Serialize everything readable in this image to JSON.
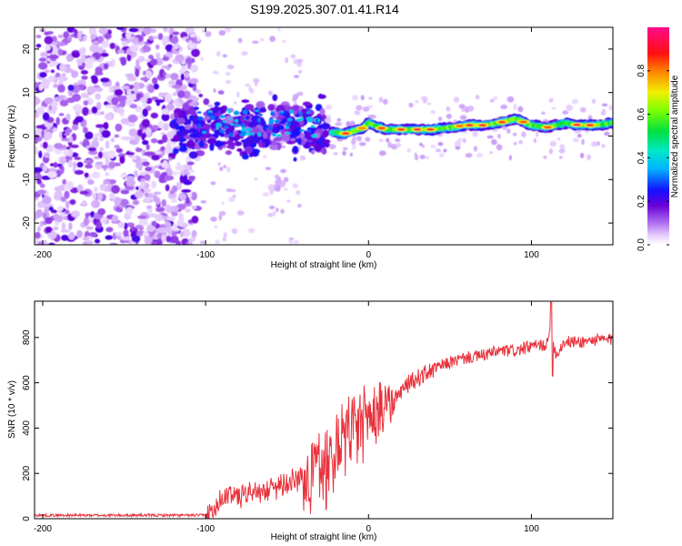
{
  "title": "S199.2025.307.01.41.R14",
  "chart_data": [
    {
      "type": "heatmap",
      "name": "spectrogram",
      "xlabel": "Height of straight line (km)",
      "ylabel": "Frequency (Hz)",
      "xlim": [
        -205,
        150
      ],
      "ylim": [
        -25,
        25
      ],
      "xticks": [
        -200,
        -100,
        0,
        100
      ],
      "yticks": [
        -20,
        -10,
        0,
        10,
        20
      ],
      "colorbar": {
        "label": "Normalized spectral amplitude",
        "range": [
          0,
          1
        ],
        "ticks": [
          0.0,
          0.2,
          0.4,
          0.6,
          0.8
        ],
        "tick_labels": [
          "0.0",
          "0.2",
          "0.4",
          "0.6",
          "0.8"
        ]
      },
      "features": [
        {
          "region": "noise",
          "x_range": [
            -205,
            -105
          ],
          "freq_range": [
            -25,
            25
          ],
          "amplitude": [
            0.0,
            0.2
          ]
        },
        {
          "region": "scattered signal",
          "x_range": [
            -120,
            -25
          ],
          "freq_range": [
            -5,
            9
          ],
          "amplitude": [
            0.1,
            0.3
          ]
        },
        {
          "region": "carrier ridge",
          "x_range": [
            -25,
            150
          ],
          "freq_range": [
            0,
            5
          ],
          "amplitude": [
            0.3,
            0.95
          ]
        }
      ],
      "ridge": {
        "x": [
          -22,
          -15,
          -5,
          0,
          10,
          20,
          30,
          40,
          50,
          60,
          70,
          80,
          90,
          100,
          110,
          120,
          130,
          140,
          150
        ],
        "freq": [
          1.0,
          0.5,
          1.5,
          3.0,
          1.5,
          1.5,
          1.5,
          1.5,
          2.0,
          2.5,
          2.5,
          3.0,
          4.0,
          2.5,
          2.0,
          3.0,
          2.5,
          2.5,
          3.0
        ]
      }
    },
    {
      "type": "line",
      "name": "snr",
      "xlabel": "Height of straight line (km)",
      "ylabel": "SNR (10 * v/v)",
      "xlim": [
        -205,
        150
      ],
      "ylim": [
        0,
        960
      ],
      "xticks": [
        -200,
        -100,
        0,
        100
      ],
      "yticks": [
        0,
        200,
        400,
        600,
        800
      ],
      "series": [
        {
          "name": "SNR",
          "color": "#e8323c",
          "x": [
            -205,
            -180,
            -150,
            -120,
            -100,
            -95,
            -90,
            -80,
            -70,
            -60,
            -50,
            -40,
            -35,
            -30,
            -25,
            -20,
            -15,
            -10,
            -5,
            0,
            5,
            10,
            15,
            20,
            25,
            30,
            35,
            40,
            50,
            60,
            70,
            80,
            90,
            100,
            105,
            110,
            112,
            115,
            120,
            130,
            140,
            150
          ],
          "values": [
            15,
            15,
            15,
            15,
            15,
            40,
            100,
            110,
            120,
            140,
            170,
            190,
            220,
            240,
            290,
            330,
            390,
            380,
            420,
            450,
            480,
            500,
            520,
            560,
            600,
            620,
            640,
            660,
            690,
            710,
            720,
            740,
            740,
            760,
            765,
            770,
            860,
            720,
            780,
            780,
            790,
            790
          ]
        }
      ],
      "annotations": [
        {
          "x": 112,
          "note": "spike",
          "peak": 955,
          "dip": 630
        }
      ]
    }
  ]
}
